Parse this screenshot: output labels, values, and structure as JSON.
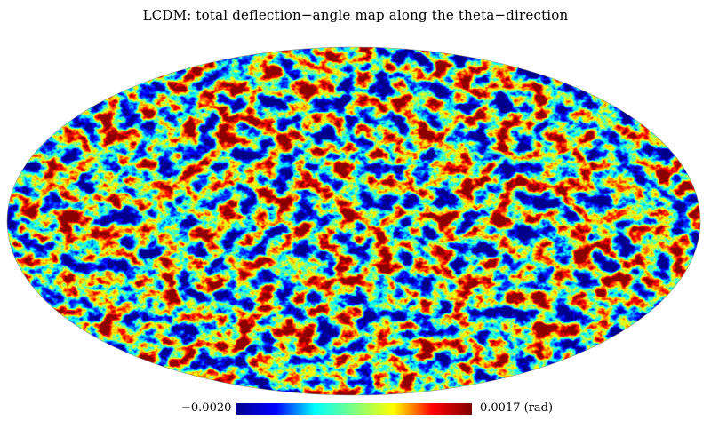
{
  "chart_data": {
    "type": "heatmap",
    "projection": "mollweide",
    "title": "LCDM: total deflection−angle map along the theta−direction",
    "colorbar": {
      "min": -0.002,
      "max": 0.0017,
      "min_label": "−0.0020",
      "max_label": "0.0017 (rad)",
      "unit": "rad",
      "colormap": "jet",
      "stops": [
        "#00008f",
        "#0000ff",
        "#00ffff",
        "#7fff7f",
        "#ffff00",
        "#ff0000",
        "#7f0000"
      ]
    }
  }
}
